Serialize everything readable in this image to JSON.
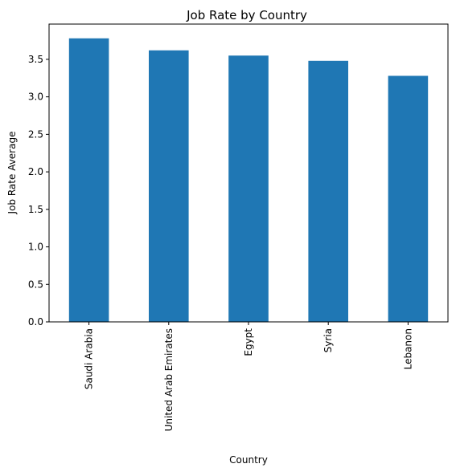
{
  "chart_data": {
    "type": "bar",
    "title": "Job Rate by Country",
    "xlabel": "Country",
    "ylabel": "Job Rate Average",
    "categories": [
      "Saudi Arabia",
      "United Arab Emirates",
      "Egypt",
      "Syria",
      "Lebanon"
    ],
    "values": [
      3.78,
      3.62,
      3.55,
      3.48,
      3.28
    ],
    "ylim": [
      0,
      3.97
    ],
    "yticks": [
      0.0,
      0.5,
      1.0,
      1.5,
      2.0,
      2.5,
      3.0,
      3.5
    ],
    "ytick_labels": [
      "0.0",
      "0.5",
      "1.0",
      "1.5",
      "2.0",
      "2.5",
      "3.0",
      "3.5"
    ],
    "bar_color": "#1f77b4",
    "grid": false,
    "legend": "none"
  }
}
